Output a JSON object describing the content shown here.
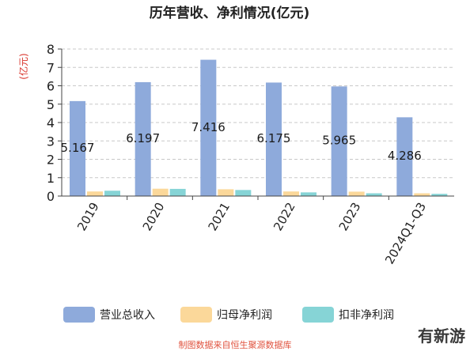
{
  "chart_data": {
    "type": "bar",
    "title": "历年营收、净利情况(亿元)",
    "ylabel": "(亿元)",
    "xlabel": "",
    "ylim": [
      0,
      8
    ],
    "yticks": [
      0,
      1,
      2,
      3,
      4,
      5,
      6,
      7,
      8
    ],
    "grid": true,
    "legend_position": "bottom",
    "categories": [
      "2019",
      "2020",
      "2021",
      "2022",
      "2023",
      "2024Q1-Q3"
    ],
    "series": [
      {
        "name": "营业总收入",
        "color": "#8eaadb",
        "values": [
          5.167,
          6.197,
          7.416,
          6.175,
          5.965,
          4.286
        ],
        "labels": [
          "5.167",
          "6.197",
          "7.416",
          "6.175",
          "5.965",
          "4.286"
        ]
      },
      {
        "name": "归母净利润",
        "color": "#fbd89a",
        "values": [
          0.25,
          0.4,
          0.37,
          0.25,
          0.24,
          0.15
        ]
      },
      {
        "name": "扣非净利润",
        "color": "#86d4d6",
        "values": [
          0.29,
          0.39,
          0.33,
          0.2,
          0.15,
          0.12
        ]
      }
    ]
  },
  "footer": "制图数据来自恒生聚源数据库",
  "watermark": "有新游"
}
